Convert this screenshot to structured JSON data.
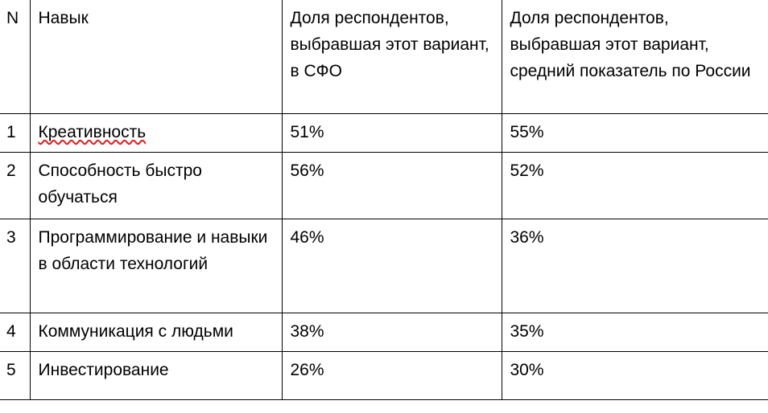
{
  "table": {
    "headers": {
      "n": "N",
      "skill": "Навык",
      "sfo": "Доля респондентов, выбравшая этот вариант, в СФО",
      "russia": "Доля респондентов, выбравшая этот вариант, средний показатель по России"
    },
    "rows": [
      {
        "n": "1",
        "skill": "Креативность",
        "sfo": "51%",
        "russia": "55%"
      },
      {
        "n": "2",
        "skill": "Способность быстро обучаться",
        "sfo": "56%",
        "russia": "52%"
      },
      {
        "n": "3",
        "skill": "Программирование и навыки в области технологий",
        "sfo": "46%",
        "russia": "36%"
      },
      {
        "n": "4",
        "skill": "Коммуникация с людьми",
        "sfo": "38%",
        "russia": "35%"
      },
      {
        "n": "5",
        "skill": "Инвестирование",
        "sfo": "26%",
        "russia": "30%"
      }
    ]
  },
  "spellcheck_flagged_word": "Креативность",
  "colors": {
    "text": "#000000",
    "border": "#000000",
    "spellcheck_underline": "#e02020",
    "background": "#ffffff"
  }
}
